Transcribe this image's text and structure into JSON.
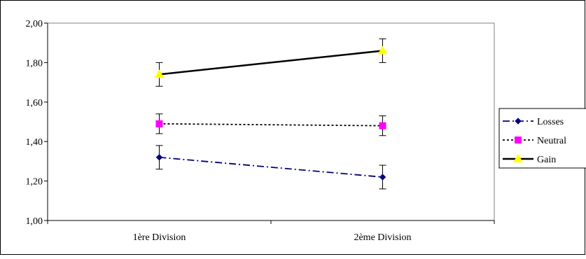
{
  "chart_data": {
    "type": "line",
    "categories": [
      "1ère Division",
      "2ème Division"
    ],
    "ylim": [
      1.0,
      2.0
    ],
    "yticks": [
      "1,00",
      "1,20",
      "1,40",
      "1,60",
      "1,80",
      "2,00"
    ],
    "ytick_values": [
      1.0,
      1.2,
      1.4,
      1.6,
      1.8,
      2.0
    ],
    "grid": false,
    "legend_position": "right",
    "series": [
      {
        "name": "Losses",
        "values": [
          1.32,
          1.22
        ],
        "errors": [
          0.06,
          0.06
        ],
        "color": "#000080",
        "marker": "diamond",
        "marker_color": "#000080",
        "line_style": "dash-dot"
      },
      {
        "name": "Neutral",
        "values": [
          1.49,
          1.48
        ],
        "errors": [
          0.05,
          0.05
        ],
        "color": "#000000",
        "marker": "square",
        "marker_color": "#FF00FF",
        "line_style": "dotted"
      },
      {
        "name": "Gain",
        "values": [
          1.74,
          1.86
        ],
        "errors": [
          0.06,
          0.06
        ],
        "color": "#000000",
        "marker": "triangle",
        "marker_color": "#FFFF00",
        "line_style": "solid"
      }
    ]
  }
}
